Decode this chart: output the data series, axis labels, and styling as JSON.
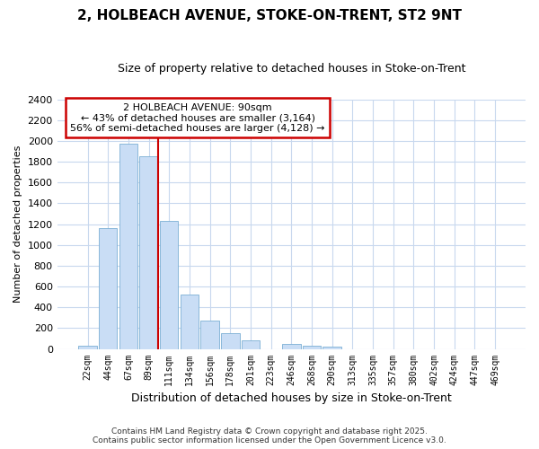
{
  "title1": "2, HOLBEACH AVENUE, STOKE-ON-TRENT, ST2 9NT",
  "title2": "Size of property relative to detached houses in Stoke-on-Trent",
  "xlabel": "Distribution of detached houses by size in Stoke-on-Trent",
  "ylabel": "Number of detached properties",
  "categories": [
    "22sqm",
    "44sqm",
    "67sqm",
    "89sqm",
    "111sqm",
    "134sqm",
    "156sqm",
    "178sqm",
    "201sqm",
    "223sqm",
    "246sqm",
    "268sqm",
    "290sqm",
    "313sqm",
    "335sqm",
    "357sqm",
    "380sqm",
    "402sqm",
    "424sqm",
    "447sqm",
    "469sqm"
  ],
  "values": [
    30,
    1160,
    1970,
    1850,
    1230,
    525,
    275,
    150,
    85,
    0,
    45,
    35,
    20,
    0,
    0,
    0,
    0,
    0,
    0,
    0,
    0
  ],
  "bar_color": "#c9ddf5",
  "bar_edge_color": "#7bafd4",
  "redline_index": 3,
  "annotation_title": "2 HOLBEACH AVENUE: 90sqm",
  "annotation_line1": "← 43% of detached houses are smaller (3,164)",
  "annotation_line2": "56% of semi-detached houses are larger (4,128) →",
  "footer1": "Contains HM Land Registry data © Crown copyright and database right 2025.",
  "footer2": "Contains public sector information licensed under the Open Government Licence v3.0.",
  "ylim": [
    0,
    2400
  ],
  "yticks": [
    0,
    200,
    400,
    600,
    800,
    1000,
    1200,
    1400,
    1600,
    1800,
    2000,
    2200,
    2400
  ],
  "fig_background": "#ffffff",
  "plot_background": "#ffffff",
  "grid_color": "#c8d8ee",
  "annotation_box_color": "#ffffff",
  "annotation_box_edge_color": "#cc0000",
  "redline_color": "#cc0000",
  "title1_fontsize": 11,
  "title2_fontsize": 9,
  "ylabel_fontsize": 8,
  "xlabel_fontsize": 9,
  "footer_fontsize": 6.5
}
